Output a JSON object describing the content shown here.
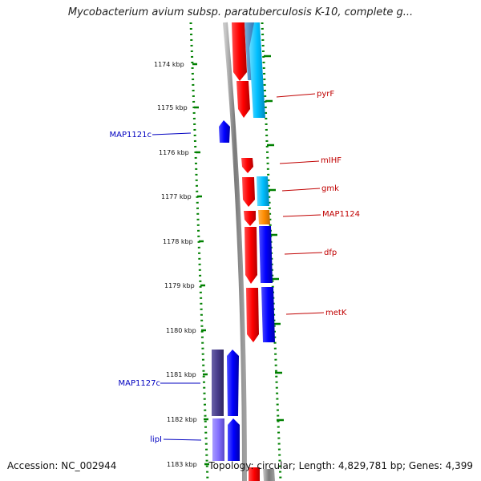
{
  "title": "Mycobacterium avium subsp. paratuberculosis K-10, complete g...",
  "footer": {
    "accession": "Accession: NC_002944",
    "topology": "Topology: circular; Length: 4,829,781 bp; Genes: 4,399"
  },
  "ticks": [
    "1174 kbp",
    "1175 kbp",
    "1176 kbp",
    "1177 kbp",
    "1178 kbp",
    "1179 kbp",
    "1180 kbp",
    "1181 kbp",
    "1182 kbp",
    "1183 kbp"
  ],
  "genes": {
    "right": [
      "pyrF",
      "mIHF",
      "gmk",
      "MAP1124",
      "dfp",
      "metK"
    ],
    "left": [
      "MAP1121c",
      "MAP1127c",
      "lipI"
    ]
  },
  "colors": {
    "red": "#ff0000",
    "light_blue": "#00bfff",
    "orange": "#ff8c00",
    "blue": "#0000ff",
    "dark_purple": "#483d8b",
    "light_purple": "#8470ff",
    "grid_green": "#008000",
    "backbone": "#808080",
    "right_label": "#c00000",
    "left_label": "#0000c0"
  }
}
